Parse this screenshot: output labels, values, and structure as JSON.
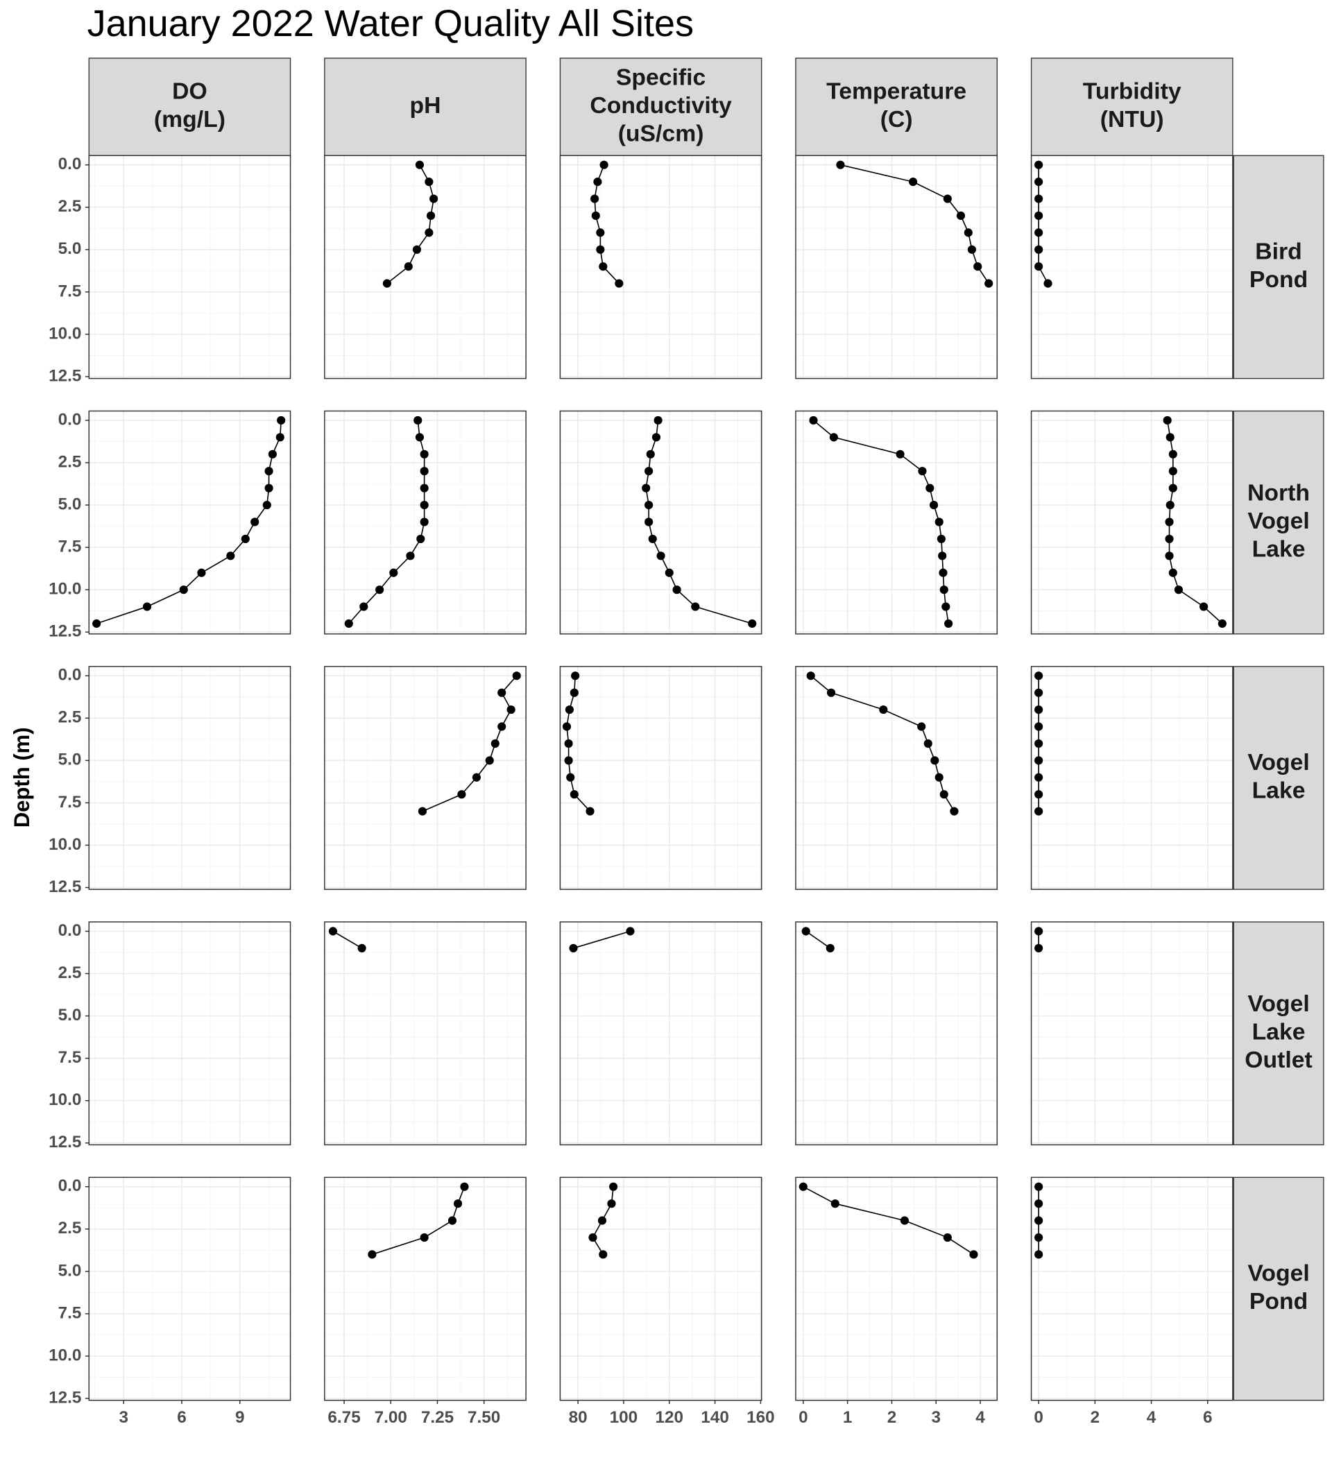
{
  "chart_data": {
    "type": "line",
    "title": "January 2022 Water Quality All Sites",
    "y_label": "Depth (m)",
    "color": "#000000",
    "grid": true,
    "y_reversed": true,
    "ylim": [
      -0.55,
      12.61
    ],
    "yticks": [
      {
        "value": 0,
        "label": "0.0"
      },
      2.5,
      {
        "value": 5,
        "label": "5.0"
      },
      7.5,
      {
        "value": 10,
        "label": "10.0"
      },
      12.5
    ],
    "y_minor_ticks": [
      1.25,
      3.75,
      6.25,
      8.75,
      11.25
    ],
    "columns": [
      {
        "label": [
          "DO",
          "(mg/L)"
        ],
        "xlim": [
          1.21,
          11.61
        ],
        "xticks": [
          3,
          6,
          9
        ],
        "x_minor_ticks": [
          1.5,
          4.5,
          7.5,
          10.5
        ]
      },
      {
        "label": [
          "pH"
        ],
        "xlim": [
          6.645,
          7.725
        ],
        "xticks": [
          6.75,
          {
            "value": 7,
            "label": "7.00"
          },
          7.25,
          {
            "value": 7.5,
            "label": "7.50"
          }
        ],
        "x_minor_ticks": [
          6.875,
          7.125,
          7.375,
          7.625
        ]
      },
      {
        "label": [
          "Specific",
          "Conductivity",
          "(uS/cm)"
        ],
        "xlim": [
          72.2,
          160.4
        ],
        "xticks": [
          80,
          100,
          120,
          140,
          160
        ],
        "x_minor_ticks": [
          90,
          110,
          130,
          150
        ]
      },
      {
        "label": [
          "Temperature",
          "(C)"
        ],
        "xlim": [
          -0.17,
          4.38
        ],
        "xticks": [
          0,
          1,
          2,
          3,
          4
        ],
        "x_minor_ticks": [
          0.5,
          1.5,
          2.5,
          3.5
        ]
      },
      {
        "label": [
          "Turbidity",
          "(NTU)"
        ],
        "xlim": [
          -0.26,
          6.89
        ],
        "xticks": [
          0,
          2,
          4,
          6
        ],
        "x_minor_ticks": [
          1,
          3,
          5
        ]
      }
    ],
    "rows": [
      {
        "label": [
          "Bird",
          "Pond"
        ],
        "values": [
          0,
          1,
          2,
          3,
          4,
          5,
          6,
          7
        ],
        "series": [
          {
            "x": [
              null,
              null,
              null,
              null,
              null,
              null,
              null,
              null
            ]
          },
          {
            "x": [
              7.155,
              7.205,
              7.23,
              7.215,
              7.205,
              7.14,
              7.095,
              6.98
            ]
          },
          {
            "x": [
              91.4,
              88.6,
              87.3,
              87.8,
              89.8,
              89.8,
              91.0,
              98.0
            ]
          },
          {
            "x": [
              0.84,
              2.48,
              3.26,
              3.56,
              3.73,
              3.81,
              3.94,
              4.19
            ]
          },
          {
            "x": [
              0,
              0,
              0,
              0,
              0,
              0,
              0,
              0.33
            ]
          }
        ]
      },
      {
        "label": [
          "North",
          "Vogel",
          "Lake"
        ],
        "values": [
          0,
          1,
          2,
          3,
          4,
          5,
          6,
          7,
          8,
          9,
          10,
          11,
          12
        ],
        "series": [
          {
            "x": [
              11.13,
              11.08,
              10.69,
              10.5,
              10.5,
              10.4,
              9.77,
              9.29,
              8.52,
              7.02,
              6.1,
              4.21,
              1.6
            ]
          },
          {
            "x": [
              7.145,
              7.155,
              7.18,
              7.18,
              7.18,
              7.18,
              7.18,
              7.16,
              7.105,
              7.015,
              6.94,
              6.855,
              6.775
            ]
          },
          {
            "x": [
              115.1,
              114.3,
              111.8,
              111.0,
              109.8,
              111.0,
              111.0,
              112.7,
              116.3,
              120.0,
              123.3,
              131.4,
              156.3
            ]
          },
          {
            "x": [
              0.23,
              0.69,
              2.19,
              2.69,
              2.86,
              2.95,
              3.07,
              3.12,
              3.14,
              3.16,
              3.18,
              3.22,
              3.28
            ]
          },
          {
            "x": [
              4.57,
              4.67,
              4.77,
              4.77,
              4.77,
              4.67,
              4.64,
              4.64,
              4.64,
              4.77,
              4.97,
              5.86,
              6.52
            ]
          }
        ]
      },
      {
        "label": [
          "Vogel",
          "Lake"
        ],
        "values": [
          0,
          1,
          2,
          3,
          4,
          5,
          6,
          7,
          8
        ],
        "series": [
          {
            "x": [
              null,
              null,
              null,
              null,
              null,
              null,
              null,
              null,
              null
            ]
          },
          {
            "x": [
              7.675,
              7.595,
              7.645,
              7.595,
              7.56,
              7.53,
              7.46,
              7.38,
              7.17
            ]
          },
          {
            "x": [
              78.8,
              78.4,
              76.3,
              75.1,
              75.9,
              75.9,
              76.7,
              78.4,
              85.3
            ]
          },
          {
            "x": [
              0.17,
              0.63,
              1.81,
              2.67,
              2.82,
              2.97,
              3.07,
              3.18,
              3.41
            ]
          },
          {
            "x": [
              0,
              0,
              0,
              0,
              0,
              0,
              0,
              0,
              0
            ]
          }
        ]
      },
      {
        "label": [
          "Vogel",
          "Lake",
          "Outlet"
        ],
        "values": [
          0,
          1
        ],
        "series": [
          {
            "x": [
              null,
              null
            ]
          },
          {
            "x": [
              6.69,
              6.845
            ]
          },
          {
            "x": [
              102.9,
              78.0
            ]
          },
          {
            "x": [
              0.06,
              0.61
            ]
          },
          {
            "x": [
              0,
              0
            ]
          }
        ]
      },
      {
        "label": [
          "Vogel",
          "Pond"
        ],
        "values": [
          0,
          1,
          2,
          3,
          4
        ],
        "series": [
          {
            "x": [
              null,
              null,
              null,
              null,
              null
            ]
          },
          {
            "x": [
              7.395,
              7.36,
              7.33,
              7.18,
              6.9
            ]
          },
          {
            "x": [
              95.5,
              94.7,
              90.6,
              86.5,
              91.0
            ]
          },
          {
            "x": [
              0,
              0.72,
              2.29,
              3.26,
              3.85
            ]
          },
          {
            "x": [
              0,
              0,
              0,
              0,
              0
            ]
          }
        ]
      }
    ]
  }
}
